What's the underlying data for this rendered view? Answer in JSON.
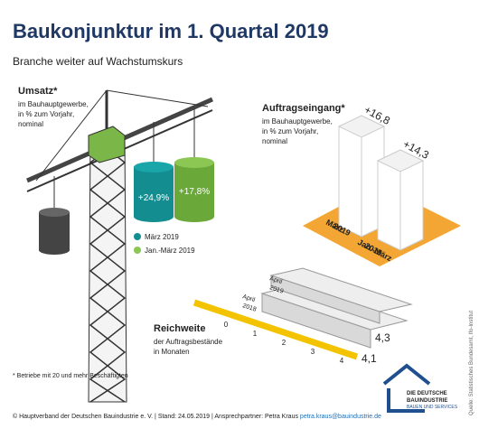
{
  "title": "Baukonjunktur im 1. Quartal 2019",
  "subtitle": "Branche weiter auf Wachstumskurs",
  "umsatz": {
    "heading": "Umsatz*",
    "description": [
      "im Bauhauptgewerbe,",
      "in % zum Vorjahr,",
      "nominal"
    ],
    "values": [
      "+24,9%",
      "+17,8%"
    ],
    "legend": [
      "März 2019",
      "Jan.-März 2019"
    ]
  },
  "auftragseingang": {
    "heading": "Auftragseingang*",
    "description": [
      "im Bauhauptgewerbe,",
      "in % zum Vorjahr,",
      "nominal"
    ],
    "values": [
      "+16,8",
      "+14,3"
    ],
    "labels": [
      [
        "März",
        "2019"
      ],
      [
        "Jan.-März",
        "2019"
      ]
    ]
  },
  "reichweite": {
    "heading": "Reichweite",
    "description": [
      "der Auftragsbestände",
      "in Monaten"
    ],
    "labels": [
      [
        "April",
        "2019"
      ],
      [
        "April",
        "2018"
      ]
    ],
    "values": [
      "4,3",
      "4,1"
    ],
    "ruler": [
      "0",
      "1",
      "2",
      "3",
      "4"
    ]
  },
  "footnote": "* Betriebe mit 20 und mehr Beschäftigten",
  "credit": "© Hauptverband der Deutschen Bauindustrie e. V. | Stand: 24.05.2019 | Ansprechpartner: Petra Kraus",
  "email": "petra.kraus@bauindustrie.de",
  "source": "Quelle: Statistisches Bundesamt, Ifo-Institut",
  "logo": [
    "DIE DEUTSCHE",
    "BAUINDUSTRIE",
    "BAUEN UND SERVICES"
  ]
}
